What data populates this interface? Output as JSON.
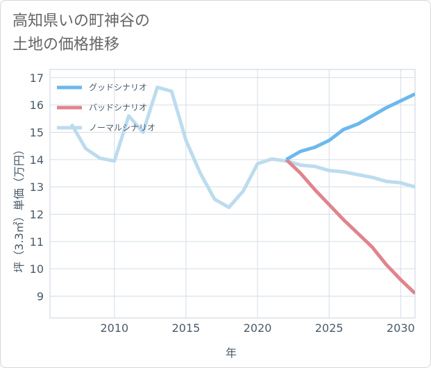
{
  "title": {
    "line1": "高知県いの町神谷の",
    "line2": "土地の価格推移"
  },
  "chart_data": {
    "type": "line",
    "title": "高知県いの町神谷の土地の価格推移",
    "xlabel": "年",
    "ylabel": "坪（3.3㎡）単価（万円）",
    "xlim": [
      2005.5,
      2031
    ],
    "ylim": [
      8.2,
      17.3
    ],
    "x_ticks": [
      2010,
      2015,
      2020,
      2025,
      2030
    ],
    "y_ticks": [
      9,
      10,
      11,
      12,
      13,
      14,
      15,
      16,
      17
    ],
    "grid": true,
    "legend_position": "top-left",
    "series": [
      {
        "name": "グッドシナリオ",
        "color": "#6cb8ee",
        "x": [
          2022,
          2023,
          2024,
          2025,
          2026,
          2027,
          2028,
          2029,
          2030,
          2031
        ],
        "y": [
          14.0,
          14.3,
          14.45,
          14.7,
          15.1,
          15.3,
          15.6,
          15.9,
          16.15,
          16.4
        ]
      },
      {
        "name": "バッドシナリオ",
        "color": "#e0848e",
        "x": [
          2022,
          2023,
          2024,
          2025,
          2026,
          2027,
          2028,
          2029,
          2030,
          2031
        ],
        "y": [
          14.0,
          13.5,
          12.9,
          12.35,
          11.8,
          11.3,
          10.8,
          10.15,
          9.6,
          9.1
        ]
      },
      {
        "name": "ノーマルシナリオ",
        "color": "#bcdcee",
        "x": [
          2007,
          2008,
          2009,
          2010,
          2011,
          2012,
          2013,
          2014,
          2015,
          2016,
          2017,
          2018,
          2019,
          2020,
          2021,
          2022,
          2023,
          2024,
          2025,
          2026,
          2027,
          2028,
          2029,
          2030,
          2031
        ],
        "y": [
          15.3,
          14.4,
          14.05,
          13.95,
          15.6,
          15.0,
          16.65,
          16.5,
          14.7,
          13.5,
          12.55,
          12.25,
          12.85,
          13.85,
          14.02,
          13.95,
          13.8,
          13.75,
          13.6,
          13.55,
          13.45,
          13.35,
          13.2,
          13.15,
          13.0
        ]
      }
    ]
  }
}
